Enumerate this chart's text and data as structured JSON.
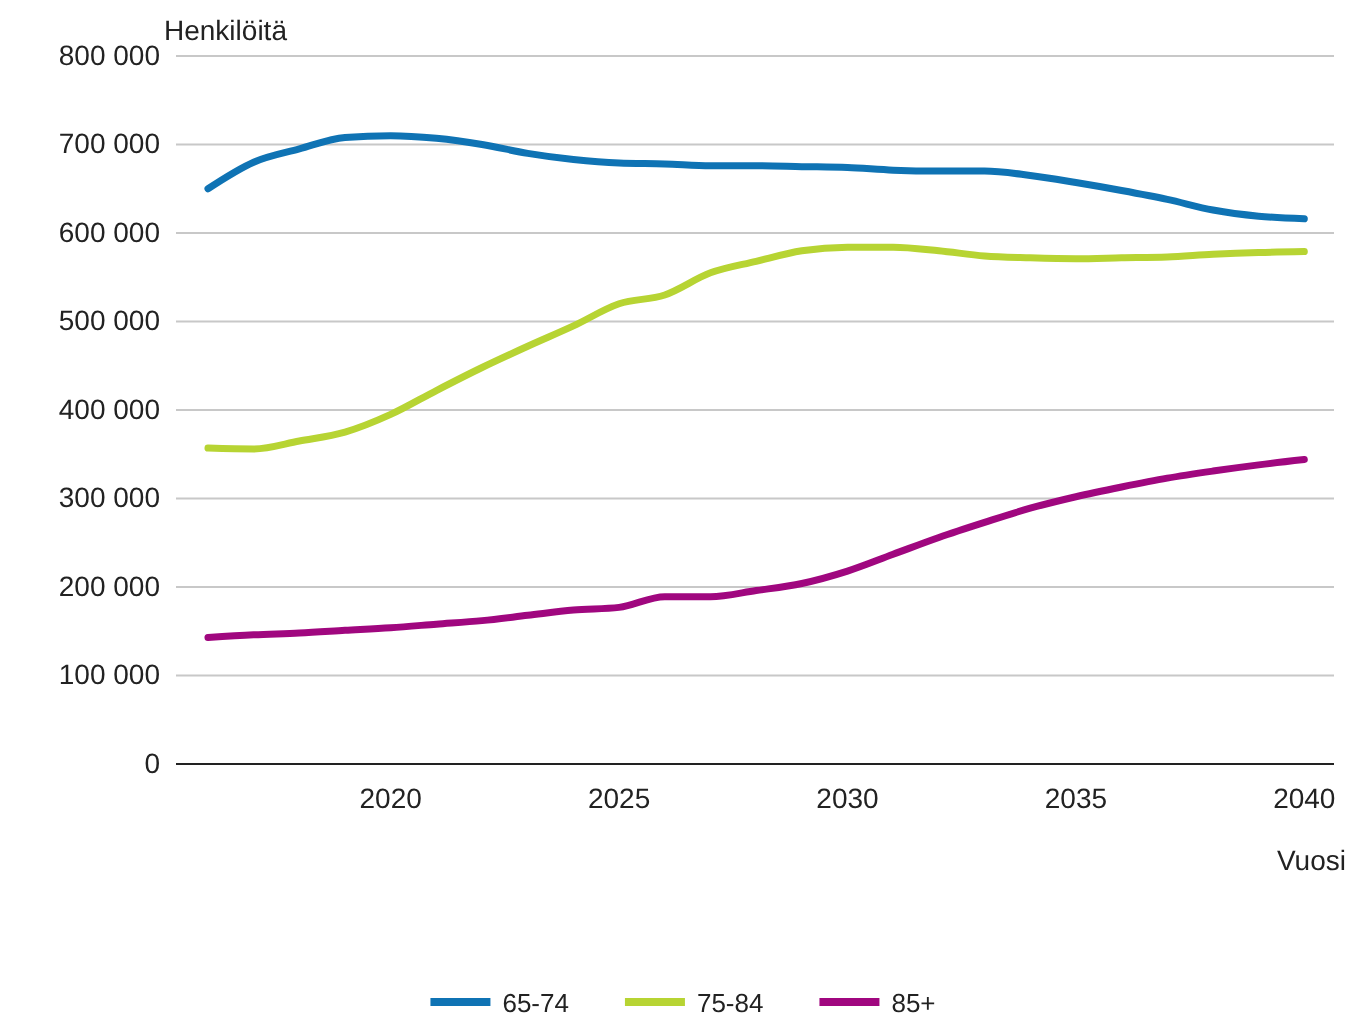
{
  "chart_data": {
    "type": "line",
    "ylabel": "Henkilöitä",
    "xlabel": "Vuosi",
    "x": [
      2016,
      2017,
      2018,
      2019,
      2020,
      2021,
      2022,
      2023,
      2024,
      2025,
      2026,
      2027,
      2028,
      2029,
      2030,
      2031,
      2032,
      2033,
      2034,
      2035,
      2036,
      2037,
      2038,
      2039,
      2040
    ],
    "series": [
      {
        "name": "65-74",
        "color": "#0f73b4",
        "values": [
          650000,
          680000,
          695000,
          708000,
          710000,
          707000,
          700000,
          690000,
          683000,
          679000,
          678000,
          676000,
          676000,
          675000,
          674000,
          671000,
          670000,
          670000,
          665000,
          657000,
          648000,
          638000,
          626000,
          619000,
          616000
        ]
      },
      {
        "name": "75-84",
        "color": "#b7d433",
        "values": [
          357000,
          356000,
          365000,
          375000,
          395000,
          422000,
          448000,
          472000,
          495000,
          520000,
          530000,
          555000,
          568000,
          580000,
          584000,
          584000,
          580000,
          574000,
          572000,
          571000,
          572000,
          573000,
          576000,
          578000,
          579000
        ]
      },
      {
        "name": "85+",
        "color": "#a0077f",
        "values": [
          143000,
          146000,
          148000,
          151000,
          154000,
          158000,
          162000,
          168000,
          174000,
          177000,
          189000,
          189000,
          196000,
          204000,
          218000,
          237000,
          256000,
          273000,
          289000,
          302000,
          313000,
          323000,
          331000,
          338000,
          344000
        ]
      }
    ],
    "xlim": [
      2015.3,
      2040.65
    ],
    "xticks": [
      2020,
      2025,
      2030,
      2035,
      2040
    ],
    "ylim": [
      0,
      800000
    ],
    "yticks": [
      {
        "value": 0,
        "label": "0"
      },
      {
        "value": 100000,
        "label": "100 000"
      },
      {
        "value": 200000,
        "label": "200 000"
      },
      {
        "value": 300000,
        "label": "300 000"
      },
      {
        "value": 400000,
        "label": "400 000"
      },
      {
        "value": 500000,
        "label": "500 000"
      },
      {
        "value": 600000,
        "label": "600 000"
      },
      {
        "value": 700000,
        "label": "700 000"
      },
      {
        "value": 800000,
        "label": "800 000"
      }
    ],
    "grid": "y",
    "legend": "bottom",
    "marker": "none",
    "line_style": "solid"
  }
}
